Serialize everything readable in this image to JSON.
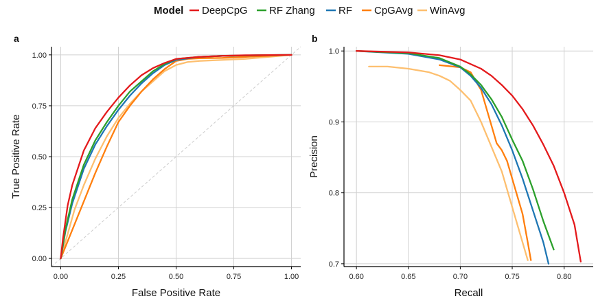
{
  "legend": {
    "title": "Model",
    "entries": [
      {
        "name": "DeepCpG",
        "color": "#e41a1c"
      },
      {
        "name": "RF Zhang",
        "color": "#2ca02c"
      },
      {
        "name": "RF",
        "color": "#1f77b4"
      },
      {
        "name": "CpGAvg",
        "color": "#ff7f0e"
      },
      {
        "name": "WinAvg",
        "color": "#fdbf6f"
      }
    ]
  },
  "chart_data": [
    {
      "type": "line",
      "panel_label": "a",
      "xlabel": "False Positive Rate",
      "ylabel": "True Positive Rate",
      "xlim": [
        -0.04,
        1.04
      ],
      "ylim": [
        -0.04,
        1.04
      ],
      "xticks": [
        0,
        0.25,
        0.5,
        0.75,
        1
      ],
      "xtick_labels": [
        "0.00",
        "0.25",
        "0.50",
        "0.75",
        "1.00"
      ],
      "yticks": [
        0,
        0.25,
        0.5,
        0.75,
        1
      ],
      "ytick_labels": [
        "0.00",
        "0.25",
        "0.50",
        "0.75",
        "1.00"
      ],
      "grid": true,
      "diagonal": true,
      "series": [
        {
          "name": "WinAvg",
          "x": [
            0,
            0.03,
            0.06,
            0.1,
            0.15,
            0.2,
            0.25,
            0.3,
            0.35,
            0.4,
            0.45,
            0.5,
            0.55,
            0.6,
            0.7,
            0.8,
            0.9,
            1.0
          ],
          "y": [
            0,
            0.12,
            0.24,
            0.36,
            0.49,
            0.6,
            0.69,
            0.76,
            0.82,
            0.87,
            0.92,
            0.95,
            0.965,
            0.97,
            0.975,
            0.98,
            0.99,
            1.0
          ]
        },
        {
          "name": "CpGAvg",
          "x": [
            0,
            0.05,
            0.1,
            0.15,
            0.2,
            0.25,
            0.3,
            0.35,
            0.4,
            0.45,
            0.5,
            0.55,
            0.6,
            0.7,
            0.8,
            0.9,
            1.0
          ],
          "y": [
            0,
            0.14,
            0.28,
            0.42,
            0.55,
            0.67,
            0.75,
            0.82,
            0.88,
            0.93,
            0.97,
            0.98,
            0.983,
            0.985,
            0.99,
            0.995,
            1.0
          ]
        },
        {
          "name": "RF",
          "x": [
            0,
            0.02,
            0.05,
            0.1,
            0.15,
            0.2,
            0.25,
            0.3,
            0.35,
            0.4,
            0.45,
            0.5,
            0.6,
            0.7,
            0.8,
            0.9,
            1.0
          ],
          "y": [
            0,
            0.13,
            0.27,
            0.44,
            0.56,
            0.65,
            0.73,
            0.8,
            0.86,
            0.91,
            0.95,
            0.975,
            0.99,
            0.995,
            0.997,
            0.999,
            1.0
          ]
        },
        {
          "name": "RF Zhang",
          "x": [
            0,
            0.02,
            0.05,
            0.1,
            0.15,
            0.2,
            0.25,
            0.3,
            0.35,
            0.4,
            0.45,
            0.5,
            0.6,
            0.7,
            0.8,
            0.9,
            1.0
          ],
          "y": [
            0,
            0.14,
            0.29,
            0.46,
            0.58,
            0.67,
            0.75,
            0.82,
            0.87,
            0.92,
            0.955,
            0.98,
            0.99,
            0.995,
            0.997,
            0.999,
            1.0
          ]
        },
        {
          "name": "DeepCpG",
          "x": [
            0,
            0.01,
            0.03,
            0.05,
            0.1,
            0.15,
            0.2,
            0.25,
            0.3,
            0.35,
            0.4,
            0.45,
            0.5,
            0.6,
            0.7,
            0.8,
            0.9,
            1.0
          ],
          "y": [
            0,
            0.1,
            0.26,
            0.36,
            0.53,
            0.64,
            0.72,
            0.79,
            0.85,
            0.9,
            0.935,
            0.96,
            0.98,
            0.99,
            0.995,
            0.998,
            0.999,
            1.0
          ]
        }
      ]
    },
    {
      "type": "line",
      "panel_label": "b",
      "xlabel": "Recall",
      "ylabel": "Precision",
      "xlim": [
        0.588,
        0.828
      ],
      "ylim": [
        0.696,
        1.006
      ],
      "xticks": [
        0.6,
        0.65,
        0.7,
        0.75,
        0.8
      ],
      "xtick_labels": [
        "0.60",
        "0.65",
        "0.70",
        "0.75",
        "0.80"
      ],
      "yticks": [
        0.7,
        0.8,
        0.9,
        1.0
      ],
      "ytick_labels": [
        "0.7",
        "0.8",
        "0.9",
        "1.0"
      ],
      "grid": true,
      "series": [
        {
          "name": "WinAvg",
          "x": [
            0.612,
            0.63,
            0.65,
            0.67,
            0.68,
            0.69,
            0.7,
            0.71,
            0.72,
            0.73,
            0.74,
            0.75,
            0.76,
            0.765
          ],
          "y": [
            0.978,
            0.978,
            0.975,
            0.97,
            0.965,
            0.958,
            0.945,
            0.93,
            0.9,
            0.865,
            0.83,
            0.78,
            0.73,
            0.705
          ]
        },
        {
          "name": "CpGAvg",
          "x": [
            0.68,
            0.7,
            0.71,
            0.72,
            0.73,
            0.735,
            0.74,
            0.745,
            0.75,
            0.755,
            0.76,
            0.765,
            0.768
          ],
          "y": [
            0.98,
            0.977,
            0.97,
            0.945,
            0.895,
            0.87,
            0.86,
            0.845,
            0.82,
            0.795,
            0.77,
            0.73,
            0.705
          ]
        },
        {
          "name": "RF",
          "x": [
            0.6,
            0.65,
            0.68,
            0.7,
            0.71,
            0.72,
            0.73,
            0.74,
            0.75,
            0.76,
            0.77,
            0.78,
            0.785
          ],
          "y": [
            1.0,
            0.996,
            0.988,
            0.977,
            0.965,
            0.948,
            0.925,
            0.895,
            0.86,
            0.82,
            0.775,
            0.73,
            0.7
          ]
        },
        {
          "name": "RF Zhang",
          "x": [
            0.6,
            0.65,
            0.68,
            0.7,
            0.71,
            0.72,
            0.73,
            0.74,
            0.75,
            0.76,
            0.77,
            0.78,
            0.785,
            0.79
          ],
          "y": [
            1.0,
            0.997,
            0.99,
            0.978,
            0.967,
            0.952,
            0.932,
            0.907,
            0.875,
            0.845,
            0.805,
            0.76,
            0.74,
            0.72
          ]
        },
        {
          "name": "DeepCpG",
          "x": [
            0.6,
            0.65,
            0.68,
            0.7,
            0.72,
            0.73,
            0.74,
            0.75,
            0.76,
            0.77,
            0.78,
            0.79,
            0.8,
            0.81,
            0.816
          ],
          "y": [
            1.0,
            0.998,
            0.994,
            0.988,
            0.975,
            0.965,
            0.952,
            0.937,
            0.918,
            0.895,
            0.868,
            0.838,
            0.8,
            0.755,
            0.703
          ]
        }
      ]
    }
  ]
}
